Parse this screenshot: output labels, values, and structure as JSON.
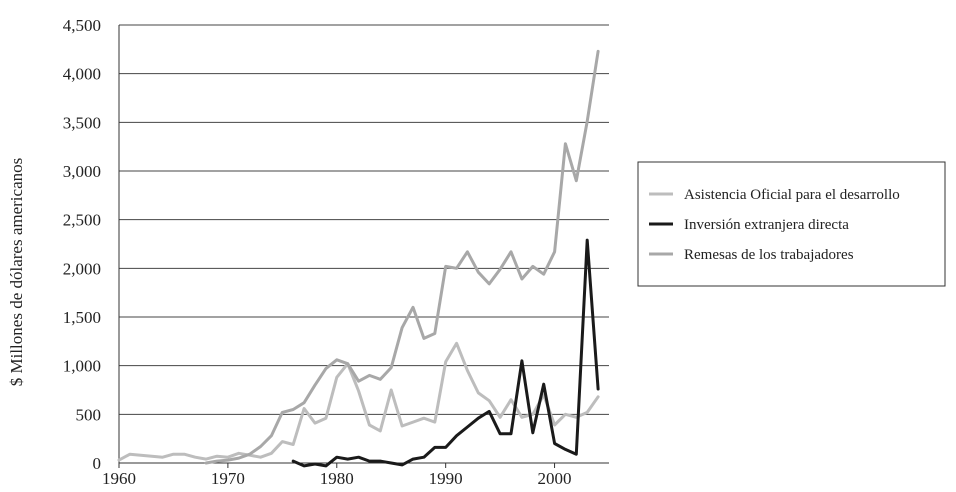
{
  "chart_data": {
    "type": "line",
    "title": "",
    "xlabel": "",
    "ylabel": "$ Millones de dólares americanos",
    "xlim": [
      1960,
      2005
    ],
    "ylim": [
      0,
      4500
    ],
    "grid": "horizontal",
    "legend_position": "right",
    "x_ticks": [
      1960,
      1970,
      1980,
      1990,
      2000
    ],
    "y_ticks": [
      0,
      500,
      1000,
      1500,
      2000,
      2500,
      3000,
      3500,
      4000,
      4500
    ],
    "x_tick_labels": [
      "1960",
      "1970",
      "1980",
      "1990",
      "2000"
    ],
    "y_tick_labels": [
      "0",
      "500",
      "1,000",
      "1,500",
      "2,000",
      "2,500",
      "3,000",
      "3,500",
      "4,000",
      "4,500"
    ],
    "series": [
      {
        "name": "Asistencia Oficial para el desarrollo",
        "color": "#bdbdbd",
        "x": [
          1960,
          1961,
          1962,
          1963,
          1964,
          1965,
          1966,
          1967,
          1968,
          1969,
          1970,
          1971,
          1972,
          1973,
          1974,
          1975,
          1976,
          1977,
          1978,
          1979,
          1980,
          1981,
          1982,
          1983,
          1984,
          1985,
          1986,
          1987,
          1988,
          1989,
          1990,
          1991,
          1992,
          1993,
          1994,
          1995,
          1996,
          1997,
          1998,
          1999,
          2000,
          2001,
          2002,
          2003,
          2004
        ],
        "y": [
          30,
          90,
          80,
          70,
          60,
          90,
          90,
          60,
          40,
          70,
          60,
          100,
          80,
          60,
          100,
          220,
          190,
          560,
          410,
          460,
          880,
          1020,
          740,
          390,
          330,
          750,
          380,
          420,
          460,
          420,
          1040,
          1230,
          950,
          720,
          640,
          470,
          650,
          470,
          500,
          700,
          390,
          500,
          470,
          520,
          680
        ]
      },
      {
        "name": "Inversión extranjera directa",
        "color": "#1a1a1a",
        "x": [
          1976,
          1977,
          1978,
          1979,
          1980,
          1981,
          1982,
          1983,
          1984,
          1985,
          1986,
          1987,
          1988,
          1989,
          1990,
          1991,
          1992,
          1993,
          1994,
          1995,
          1996,
          1997,
          1998,
          1999,
          2000,
          2001,
          2002,
          2003,
          2004
        ],
        "y": [
          20,
          -30,
          -10,
          -30,
          60,
          40,
          60,
          20,
          20,
          0,
          -20,
          40,
          60,
          160,
          160,
          280,
          370,
          460,
          530,
          300,
          300,
          1050,
          310,
          810,
          200,
          140,
          90,
          2290,
          760
        ]
      },
      {
        "name": "Remesas de los trabajadores",
        "color": "#a8a8a8",
        "x": [
          1968,
          1969,
          1970,
          1971,
          1972,
          1973,
          1974,
          1975,
          1976,
          1977,
          1978,
          1979,
          1980,
          1981,
          1982,
          1983,
          1984,
          1985,
          1986,
          1987,
          1988,
          1989,
          1990,
          1991,
          1992,
          1993,
          1994,
          1995,
          1996,
          1997,
          1998,
          1999,
          2000,
          2001,
          2002,
          2003,
          2004
        ],
        "y": [
          0,
          20,
          30,
          50,
          90,
          170,
          280,
          520,
          550,
          620,
          800,
          970,
          1060,
          1020,
          840,
          900,
          860,
          980,
          1390,
          1600,
          1280,
          1330,
          2020,
          2000,
          2170,
          1960,
          1840,
          1990,
          2170,
          1890,
          2020,
          1940,
          2170,
          3280,
          2900,
          3510,
          4230
        ]
      }
    ]
  }
}
